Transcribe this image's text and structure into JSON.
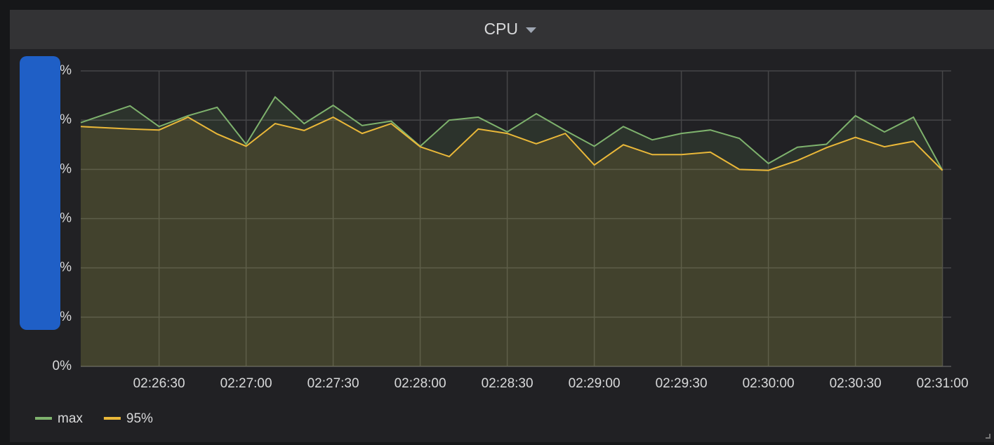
{
  "chart_data": {
    "type": "line",
    "title": "CPU",
    "x": [
      "02:26:03",
      "02:26:20",
      "02:26:30",
      "02:26:40",
      "02:26:50",
      "02:27:00",
      "02:27:10",
      "02:27:20",
      "02:27:30",
      "02:27:40",
      "02:27:50",
      "02:28:00",
      "02:28:10",
      "02:28:20",
      "02:28:30",
      "02:28:40",
      "02:28:50",
      "02:29:00",
      "02:29:10",
      "02:29:20",
      "02:29:30",
      "02:29:40",
      "02:29:50",
      "02:30:00",
      "02:30:10",
      "02:30:20",
      "02:30:30",
      "02:30:40",
      "02:30:50",
      "02:31:00"
    ],
    "series": [
      {
        "name": "max",
        "color": "#7eb26d",
        "values": [
          4.95,
          5.29,
          4.87,
          5.09,
          5.26,
          4.51,
          5.47,
          4.93,
          5.3,
          4.89,
          4.98,
          4.47,
          5.0,
          5.06,
          4.76,
          5.13,
          4.79,
          4.47,
          4.87,
          4.6,
          4.73,
          4.8,
          4.63,
          4.12,
          4.45,
          4.51,
          5.09,
          4.76,
          5.06,
          3.98
        ]
      },
      {
        "name": "95%",
        "color": "#eab839",
        "values": [
          4.87,
          4.82,
          4.8,
          5.06,
          4.72,
          4.47,
          4.93,
          4.79,
          5.06,
          4.73,
          4.93,
          4.46,
          4.26,
          4.82,
          4.73,
          4.52,
          4.73,
          4.09,
          4.5,
          4.3,
          4.3,
          4.35,
          4.0,
          3.98,
          4.18,
          4.44,
          4.65,
          4.46,
          4.57,
          3.98
        ]
      }
    ],
    "xlim": [
      "02:26:03",
      "02:31:03"
    ],
    "xticks": [
      "02:26:30",
      "02:27:00",
      "02:27:30",
      "02:28:00",
      "02:28:30",
      "02:29:00",
      "02:29:30",
      "02:30:00",
      "02:30:30",
      "02:31:00"
    ],
    "ylim": [
      0,
      6
    ],
    "yticks": [
      {
        "value": 0,
        "label": "0%"
      },
      {
        "value": 1,
        "label": "%"
      },
      {
        "value": 2,
        "label": "%"
      },
      {
        "value": 3,
        "label": "%"
      },
      {
        "value": 4,
        "label": "%"
      },
      {
        "value": 5,
        "label": "%"
      },
      {
        "value": 6,
        "label": "%"
      }
    ],
    "grid": true,
    "legend": "bottom-left"
  }
}
